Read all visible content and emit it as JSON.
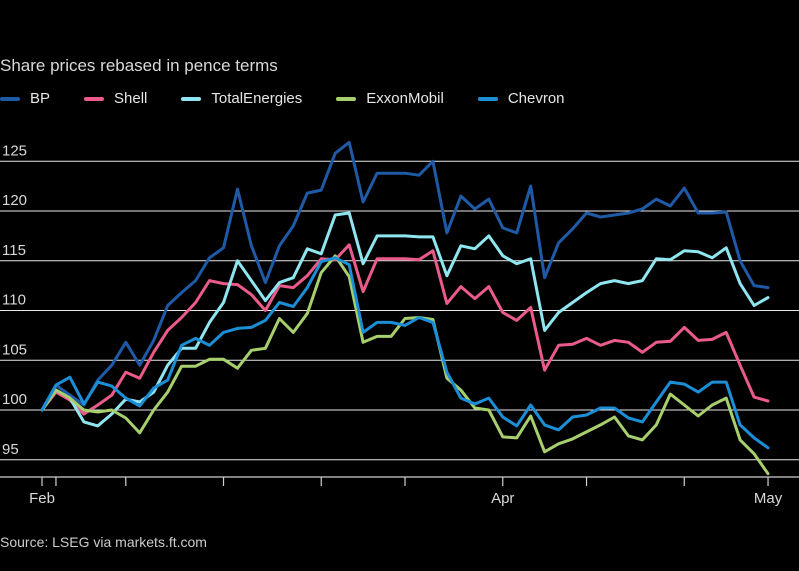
{
  "chart_data": {
    "type": "line",
    "subtitle": "Share prices rebased in pence terms",
    "source": "Source: LSEG via markets.ft.com",
    "ylim": [
      93,
      128
    ],
    "yticks": [
      95,
      100,
      105,
      110,
      115,
      120,
      125
    ],
    "grid": true,
    "legend_position": "top-left",
    "x_range": [
      0,
      53
    ],
    "x_ticks": [
      {
        "x": 0,
        "label": "Feb"
      },
      {
        "x": 1,
        "label": ""
      },
      {
        "x": 6,
        "label": ""
      },
      {
        "x": 13,
        "label": ""
      },
      {
        "x": 20,
        "label": ""
      },
      {
        "x": 26,
        "label": ""
      },
      {
        "x": 33,
        "label": "Apr"
      },
      {
        "x": 39,
        "label": ""
      },
      {
        "x": 46,
        "label": ""
      },
      {
        "x": 52,
        "label": "May"
      }
    ],
    "series": [
      {
        "name": "BP",
        "color": "#1f5aa6",
        "values": [
          100,
          102.5,
          101.5,
          100.5,
          103,
          104.5,
          106.8,
          104.5,
          107,
          110.5,
          111.8,
          113,
          115.3,
          116.3,
          122.2,
          116.5,
          112.8,
          116.5,
          118.5,
          121.8,
          122.1,
          125.8,
          126.9,
          120.9,
          123.8,
          123.8,
          123.8,
          123.6,
          125,
          117.8,
          121.5,
          120.2,
          121.2,
          118.3,
          117.8,
          122.5,
          113.3,
          116.8,
          118.2,
          119.8,
          119.4,
          119.6,
          119.8,
          120.2,
          121.2,
          120.5,
          122.3,
          119.8,
          119.8,
          119.9,
          115,
          112.5,
          112.3
        ]
      },
      {
        "name": "Shell",
        "color": "#ea5b8b",
        "values": [
          100,
          101.8,
          101,
          99.6,
          100.5,
          101.5,
          103.8,
          103.2,
          105.8,
          108,
          109.3,
          110.8,
          113,
          112.7,
          112.6,
          111.6,
          110,
          112.5,
          112.3,
          113.5,
          115.2,
          115.1,
          116.6,
          111.9,
          115.2,
          115.2,
          115.2,
          115.1,
          116,
          110.7,
          112.4,
          111.2,
          112.4,
          109.8,
          109,
          110.3,
          104,
          106.5,
          106.6,
          107.2,
          106.5,
          107,
          106.8,
          105.8,
          106.8,
          106.9,
          108.3,
          107,
          107.1,
          107.8,
          104.5,
          101.3,
          100.9
        ]
      },
      {
        "name": "TotalEnergies",
        "color": "#8fe6f0",
        "values": [
          100,
          102,
          101.2,
          98.8,
          98.4,
          99.6,
          101.1,
          100.8,
          101.8,
          104.5,
          106.2,
          106.2,
          108.8,
          110.8,
          115,
          113,
          111,
          112.8,
          113.3,
          116.2,
          115.7,
          119.6,
          119.8,
          114.7,
          117.5,
          117.5,
          117.5,
          117.4,
          117.4,
          113.5,
          116.5,
          116.2,
          117.5,
          115.5,
          114.7,
          115.2,
          108,
          109.8,
          110.8,
          111.8,
          112.7,
          113,
          112.7,
          113,
          115.2,
          115.1,
          116,
          115.9,
          115.3,
          116.3,
          112.7,
          110.5,
          111.3
        ]
      },
      {
        "name": "ExxonMobil",
        "color": "#a8cf6e",
        "values": [
          100,
          102,
          101.2,
          100,
          99.8,
          100,
          99.2,
          97.7,
          100,
          101.8,
          104.4,
          104.4,
          105.1,
          105.1,
          104.2,
          106,
          106.2,
          109.2,
          107.8,
          109.7,
          113.8,
          115.5,
          113.4,
          106.8,
          107.4,
          107.4,
          109.2,
          109.3,
          109.1,
          103.2,
          102,
          100.2,
          100,
          97.3,
          97.2,
          99.4,
          95.8,
          96.6,
          97.1,
          97.8,
          98.5,
          99.3,
          97.4,
          97,
          98.5,
          101.6,
          100.5,
          99.4,
          100.5,
          101.2,
          97,
          95.6,
          93.6
        ]
      },
      {
        "name": "Chevron",
        "color": "#1b8ed6",
        "values": [
          100,
          102.5,
          103.3,
          100.6,
          102.8,
          102.4,
          101.2,
          100.4,
          102.2,
          103,
          106.5,
          107.2,
          106.5,
          107.8,
          108.2,
          108.3,
          109,
          110.8,
          110.4,
          112.3,
          114.9,
          115.3,
          114.6,
          107.8,
          108.8,
          108.8,
          108.5,
          109.3,
          108.8,
          103.8,
          101.2,
          100.6,
          101.2,
          99.3,
          98.4,
          100.5,
          98.5,
          98,
          99.3,
          99.5,
          100.2,
          100.2,
          99.2,
          98.8,
          100.8,
          102.8,
          102.6,
          101.8,
          102.8,
          102.8,
          98.5,
          97.2,
          96.2
        ]
      }
    ]
  }
}
